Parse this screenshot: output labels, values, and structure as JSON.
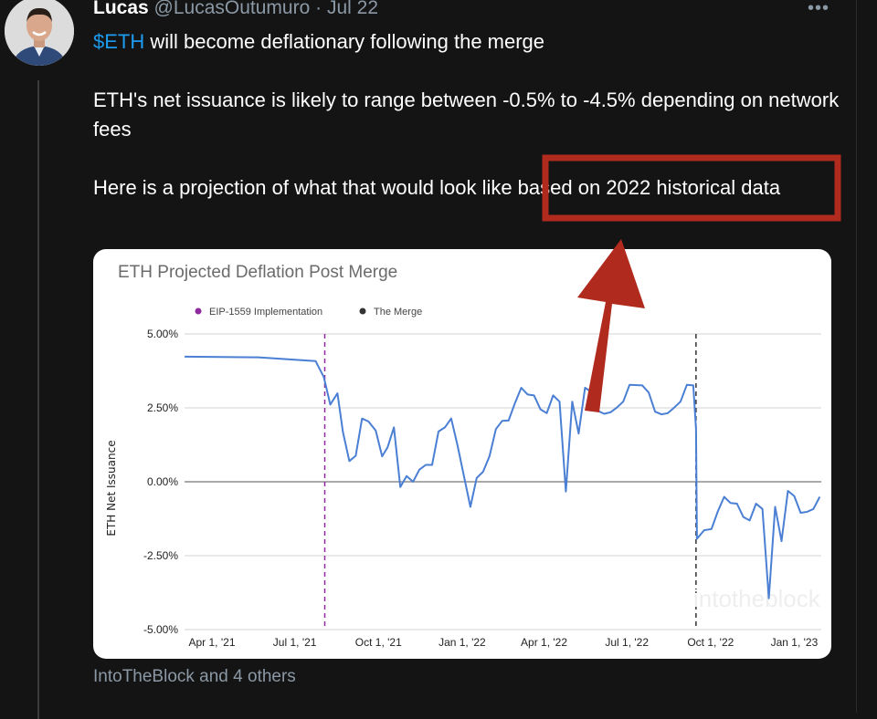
{
  "tweet": {
    "author_name": "Lucas",
    "author_handle": "@LucasOutumuro",
    "separator": "·",
    "date": "Jul 22",
    "more_label": "•••",
    "cashtag": "$ETH",
    "line1_rest": " will become deflationary following the merge",
    "paragraph2": "ETH's net issuance is likely to range between -0.5% to -4.5% depending on network fees",
    "paragraph3": "Here is a projection of what that would look like based on 2022 historical data",
    "attribution": "IntoTheBlock and 4 others",
    "annotation_color": "#b02a1e"
  },
  "chart_data": {
    "type": "line",
    "title": "ETH Projected Deflation Post Merge",
    "ylabel": "ETH Net Issuance",
    "xlabel": "",
    "ylim": [
      -5,
      5
    ],
    "y_ticks": [
      "5.00%",
      "2.50%",
      "0.00%",
      "-2.50%",
      "-5.00%"
    ],
    "y_tick_values": [
      5,
      2.5,
      0,
      -2.5,
      -5
    ],
    "x_ticks": [
      "Apr 1, '21",
      "Jul 1, '21",
      "Oct 1, '21",
      "Jan 1, '22",
      "Apr 1, '22",
      "Jul 1, '22",
      "Oct 1, '22",
      "Jan 1, '23"
    ],
    "x_tick_dates": [
      "2021-04-01",
      "2021-07-01",
      "2021-10-01",
      "2022-01-01",
      "2022-04-01",
      "2022-07-01",
      "2022-10-01",
      "2023-01-01"
    ],
    "grid": true,
    "legend_position": "top-left",
    "watermark": "intotheblock",
    "series_color": "#4a7fd4",
    "events": [
      {
        "name": "EIP-1559 Implementation",
        "date": "2021-08-03",
        "color": "#8e2a9e"
      },
      {
        "name": "The Merge",
        "date": "2022-09-15",
        "color": "#333333"
      }
    ],
    "series": [
      {
        "points": [
          [
            "2021-03-02",
            4.23
          ],
          [
            "2021-05-22",
            4.21
          ],
          [
            "2021-07-24",
            4.08
          ],
          [
            "2021-08-02",
            3.54
          ],
          [
            "2021-08-09",
            2.61
          ],
          [
            "2021-08-17",
            2.99
          ],
          [
            "2021-08-23",
            1.68
          ],
          [
            "2021-08-30",
            0.7
          ],
          [
            "2021-09-06",
            0.88
          ],
          [
            "2021-09-13",
            2.14
          ],
          [
            "2021-09-20",
            2.04
          ],
          [
            "2021-09-28",
            1.73
          ],
          [
            "2021-10-05",
            0.86
          ],
          [
            "2021-10-11",
            1.16
          ],
          [
            "2021-10-18",
            1.84
          ],
          [
            "2021-10-25",
            -0.18
          ],
          [
            "2021-11-01",
            0.19
          ],
          [
            "2021-11-08",
            0.0
          ],
          [
            "2021-11-15",
            0.41
          ],
          [
            "2021-11-22",
            0.57
          ],
          [
            "2021-11-29",
            0.57
          ],
          [
            "2021-12-06",
            1.7
          ],
          [
            "2021-12-13",
            1.84
          ],
          [
            "2021-12-20",
            2.14
          ],
          [
            "2021-12-27",
            1.22
          ],
          [
            "2022-01-10",
            -0.85
          ],
          [
            "2022-01-17",
            0.13
          ],
          [
            "2022-01-24",
            0.34
          ],
          [
            "2022-01-31",
            0.86
          ],
          [
            "2022-02-07",
            1.78
          ],
          [
            "2022-02-14",
            2.06
          ],
          [
            "2022-02-21",
            2.07
          ],
          [
            "2022-02-28",
            2.66
          ],
          [
            "2022-03-07",
            3.18
          ],
          [
            "2022-03-14",
            2.95
          ],
          [
            "2022-03-21",
            2.92
          ],
          [
            "2022-03-28",
            2.45
          ],
          [
            "2022-04-04",
            2.32
          ],
          [
            "2022-04-11",
            2.92
          ],
          [
            "2022-04-18",
            2.71
          ],
          [
            "2022-04-25",
            -0.33
          ],
          [
            "2022-05-02",
            2.71
          ],
          [
            "2022-05-09",
            1.63
          ],
          [
            "2022-05-16",
            3.18
          ],
          [
            "2022-05-23",
            3.04
          ],
          [
            "2022-05-30",
            2.4
          ],
          [
            "2022-06-06",
            2.3
          ],
          [
            "2022-06-13",
            2.35
          ],
          [
            "2022-06-20",
            2.51
          ],
          [
            "2022-06-27",
            2.71
          ],
          [
            "2022-07-04",
            3.28
          ],
          [
            "2022-07-18",
            3.26
          ],
          [
            "2022-07-25",
            3.02
          ],
          [
            "2022-08-01",
            2.37
          ],
          [
            "2022-08-08",
            2.28
          ],
          [
            "2022-08-15",
            2.32
          ],
          [
            "2022-08-22",
            2.51
          ],
          [
            "2022-08-29",
            2.71
          ],
          [
            "2022-09-05",
            3.28
          ],
          [
            "2022-09-12",
            3.26
          ],
          [
            "2022-09-15",
            1.78
          ],
          [
            "2022-09-16",
            -1.93
          ],
          [
            "2022-09-24",
            -1.64
          ],
          [
            "2022-10-02",
            -1.6
          ],
          [
            "2022-10-09",
            -1.0
          ],
          [
            "2022-10-16",
            -0.51
          ],
          [
            "2022-10-23",
            -0.72
          ],
          [
            "2022-10-30",
            -0.74
          ],
          [
            "2022-11-06",
            -1.19
          ],
          [
            "2022-11-13",
            -1.31
          ],
          [
            "2022-11-20",
            -0.74
          ],
          [
            "2022-11-27",
            -0.92
          ],
          [
            "2022-12-04",
            -3.94
          ],
          [
            "2022-12-11",
            -0.85
          ],
          [
            "2022-12-18",
            -2.01
          ],
          [
            "2022-12-25",
            -0.31
          ],
          [
            "2023-01-01",
            -0.48
          ],
          [
            "2023-01-08",
            -1.05
          ],
          [
            "2023-01-15",
            -1.02
          ],
          [
            "2023-01-22",
            -0.92
          ],
          [
            "2023-01-29",
            -0.51
          ]
        ]
      }
    ]
  }
}
